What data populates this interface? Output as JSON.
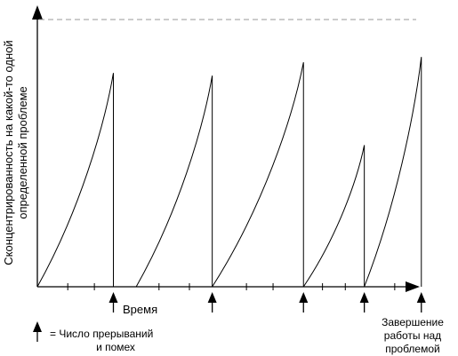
{
  "diagram": {
    "y_axis_label_line1": "Сконцентрированность на какой-то одной",
    "y_axis_label_line2": "определенной проблеме",
    "x_axis_label": "Время",
    "legend_text_line1": "= Число прерываний",
    "legend_text_line2": "и помех",
    "end_label_line1": "Завершение",
    "end_label_line2": "работы над",
    "end_label_line3": "проблемой"
  },
  "chart_data": {
    "type": "line",
    "series": [
      {
        "x_start": 0.0,
        "x_end": 1.0,
        "peak": 0.8
      },
      {
        "x_start": 1.3,
        "x_end": 2.3,
        "peak": 0.79
      },
      {
        "x_start": 2.3,
        "x_end": 3.5,
        "peak": 0.84
      },
      {
        "x_start": 3.5,
        "x_end": 4.3,
        "peak": 0.53
      },
      {
        "x_start": 4.3,
        "x_end": 5.05,
        "peak": 0.86
      }
    ],
    "interruptions_x": [
      1.0,
      2.3,
      3.5,
      4.3
    ],
    "completion_x": 5.05,
    "max_level": 0.93
  },
  "colors": {
    "line": "#000000",
    "dashed_max": "#999999"
  }
}
